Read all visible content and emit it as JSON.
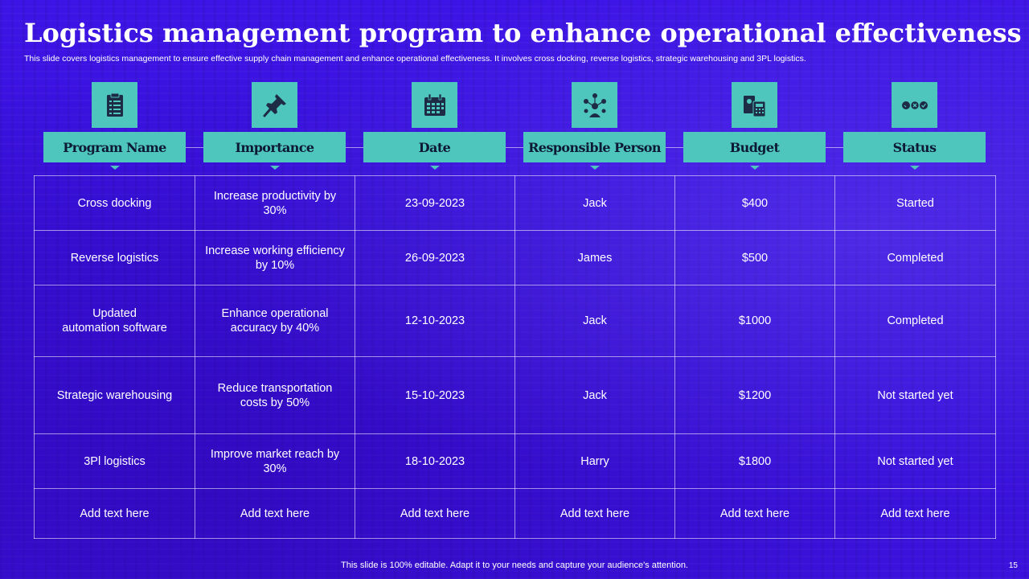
{
  "slide": {
    "title": "Logistics management program to enhance operational effectiveness",
    "subtitle": "This slide covers logistics  management to ensure effective supply chain management and  enhance operational effectiveness. It involves cross docking, reverse logistics, strategic warehousing and 3PL logistics.",
    "footer": "This slide is 100% editable. Adapt it to your needs and capture your audience's attention.",
    "page_number": "15"
  },
  "colors": {
    "background": "#3a10e0",
    "accent_teal": "#4ec5bd",
    "header_text": "#0d1a33"
  },
  "columns": [
    {
      "label": "Program Name",
      "icon": "clipboard-checklist-icon"
    },
    {
      "label": "Importance",
      "icon": "pushpin-icon"
    },
    {
      "label": "Date",
      "icon": "calendar-icon"
    },
    {
      "label": "Responsible Person",
      "icon": "person-network-icon"
    },
    {
      "label": "Budget",
      "icon": "money-calculator-icon"
    },
    {
      "label": "Status",
      "icon": "status-circles-icon"
    }
  ],
  "rows": [
    [
      "Cross docking",
      "Increase productivity by 30%",
      "23-09-2023",
      "Jack",
      "$400",
      "Started"
    ],
    [
      "Reverse logistics",
      "Increase working efficiency by 10%",
      "26-09-2023",
      "James",
      "$500",
      "Completed"
    ],
    [
      "Updated\nautomation software",
      "Enhance operational accuracy by 40%",
      "12-10-2023",
      "Jack",
      "$1000",
      "Completed"
    ],
    [
      "Strategic warehousing",
      "Reduce transportation costs by 50%",
      "15-10-2023",
      "Jack",
      "$1200",
      "Not started yet"
    ],
    [
      "3Pl logistics",
      "Improve market reach by 30%",
      "18-10-2023",
      "Harry",
      "$1800",
      "Not started yet"
    ],
    [
      "Add text here",
      "Add text here",
      "Add text here",
      "Add text here",
      "Add text here",
      "Add text here"
    ]
  ]
}
